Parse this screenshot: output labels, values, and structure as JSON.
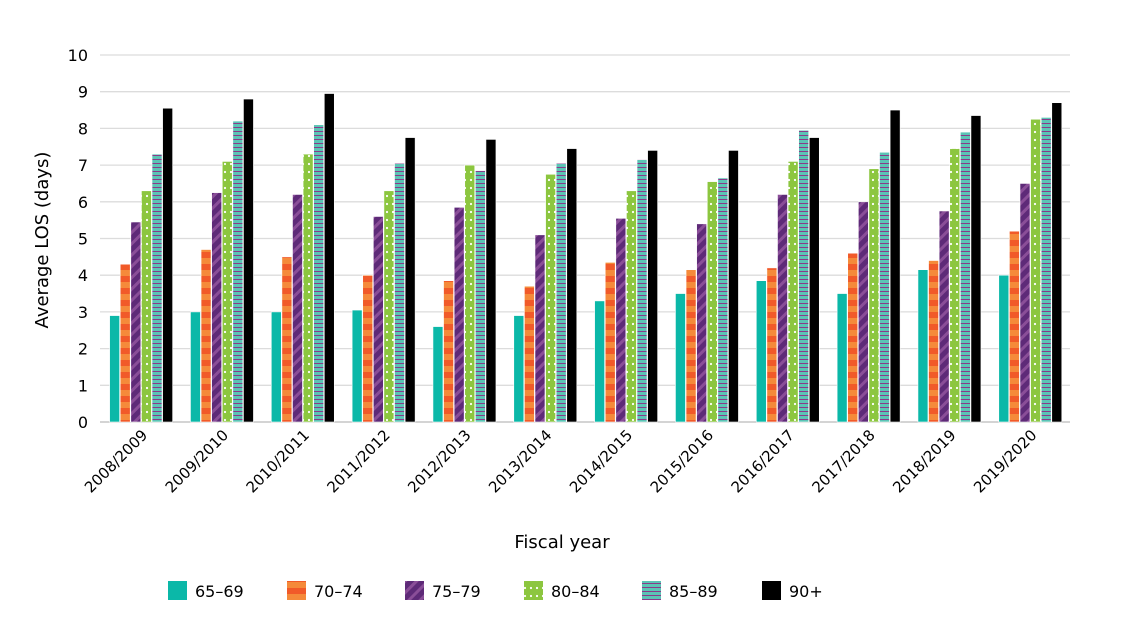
{
  "chart_data": {
    "type": "bar",
    "title": "",
    "xlabel": "Fiscal year",
    "ylabel": "Average LOS (days)",
    "ylim": [
      0,
      10
    ],
    "yticks": [
      0,
      1,
      2,
      3,
      4,
      5,
      6,
      7,
      8,
      9,
      10
    ],
    "grid": true,
    "legend_position": "bottom",
    "categories": [
      "2008/2009",
      "2009/2010",
      "2010/2011",
      "2011/2012",
      "2012/2013",
      "2013/2014",
      "2014/2015",
      "2015/2016",
      "2016/2017",
      "2017/2018",
      "2018/2019",
      "2019/2020"
    ],
    "series": [
      {
        "name": "65–69",
        "color": "#0bb8a8",
        "pattern": "solid",
        "values": [
          2.9,
          3.0,
          3.0,
          3.05,
          2.6,
          2.9,
          3.3,
          3.5,
          3.85,
          3.5,
          4.15,
          4.0
        ]
      },
      {
        "name": "70–74",
        "color": "#f26a2e",
        "pattern": "horizontal-stripes",
        "values": [
          4.3,
          4.7,
          4.5,
          4.0,
          3.85,
          3.7,
          4.35,
          4.15,
          4.2,
          4.6,
          4.4,
          5.2
        ]
      },
      {
        "name": "75–79",
        "color": "#6a2c7e",
        "pattern": "diagonal-stripes",
        "values": [
          5.45,
          6.25,
          6.2,
          5.6,
          5.85,
          5.1,
          5.55,
          5.4,
          6.2,
          6.0,
          5.75,
          6.5
        ]
      },
      {
        "name": "80–84",
        "color": "#8cc63f",
        "pattern": "dots",
        "values": [
          6.3,
          7.1,
          7.3,
          6.3,
          7.0,
          6.75,
          6.3,
          6.55,
          7.1,
          6.9,
          7.45,
          8.25
        ]
      },
      {
        "name": "85–89",
        "color": "#5bc4b5",
        "pattern": "fine-stripes",
        "values": [
          7.3,
          8.2,
          8.1,
          7.05,
          6.85,
          7.05,
          7.15,
          6.65,
          7.95,
          7.35,
          7.9,
          8.3
        ]
      },
      {
        "name": "90+",
        "color": "#000000",
        "pattern": "solid",
        "values": [
          8.55,
          8.8,
          8.95,
          7.75,
          7.7,
          7.45,
          7.4,
          7.4,
          7.75,
          8.5,
          8.35,
          8.7
        ]
      }
    ]
  }
}
